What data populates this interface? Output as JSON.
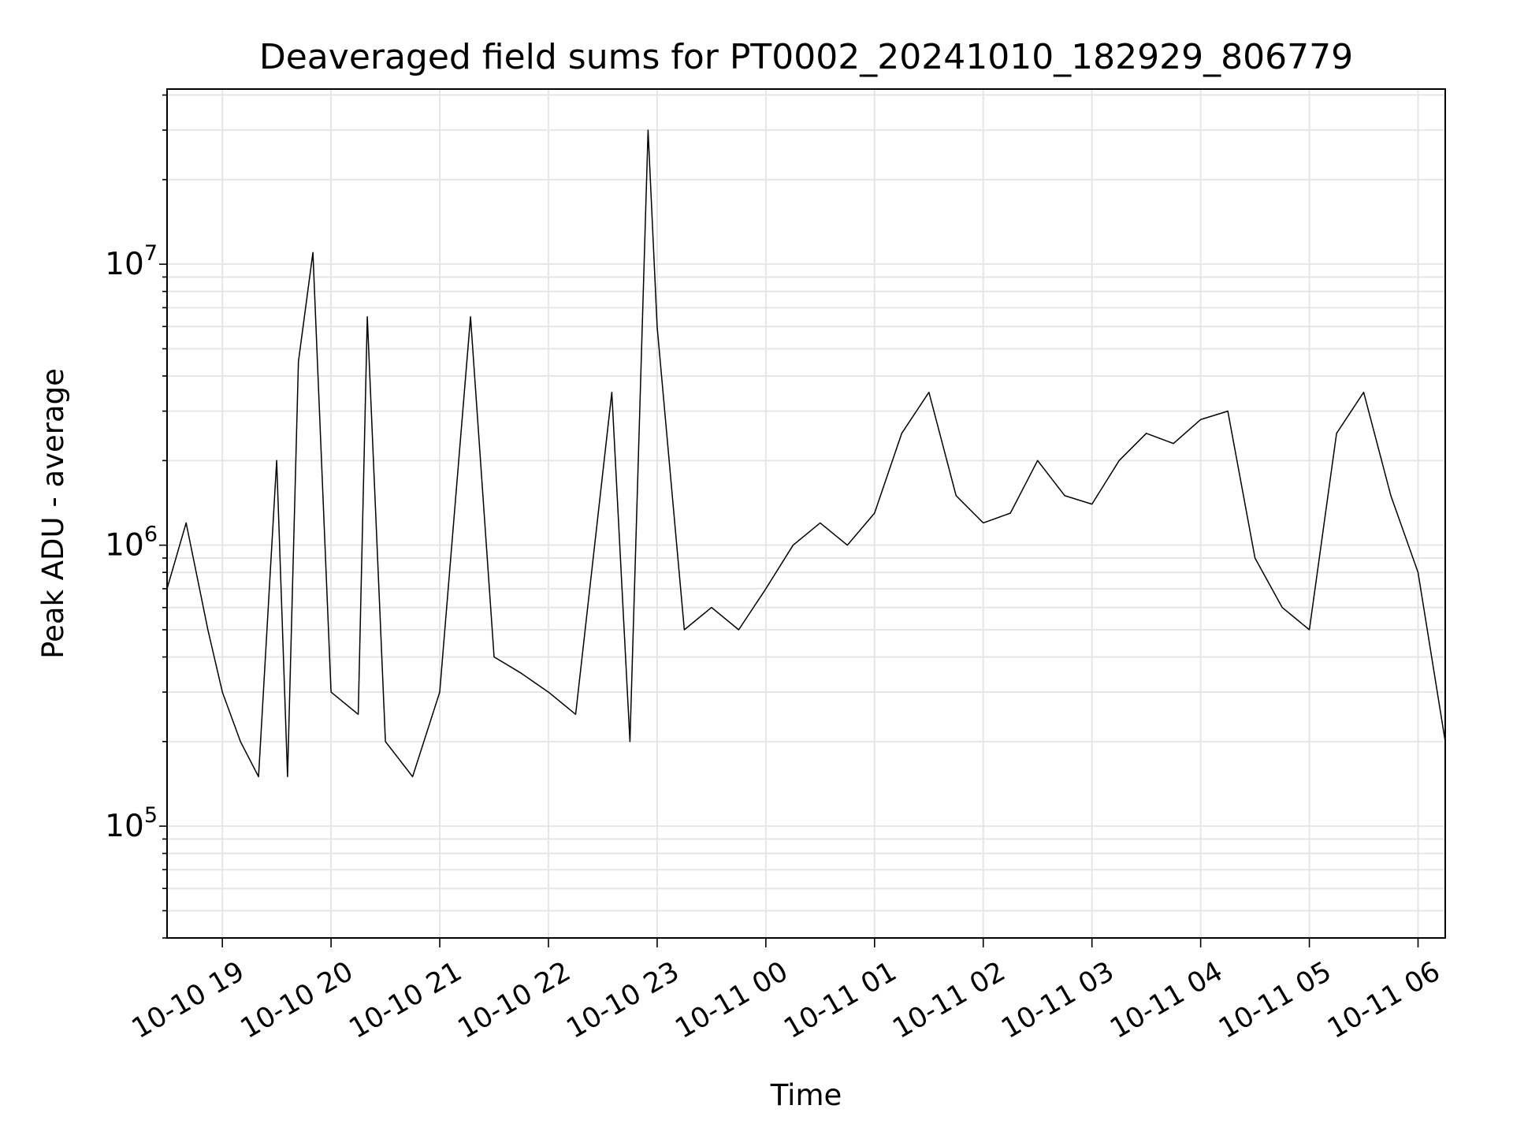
{
  "chart_data": {
    "type": "line",
    "title": "Deaveraged field sums for PT0002_20241010_182929_806779",
    "xlabel": "Time",
    "ylabel": "Peak ADU - average",
    "yscale": "log",
    "ylim": [
      40000,
      42000000
    ],
    "xlim": [
      "2024-10-10 18:29:29",
      "2024-10-11 06:15:00"
    ],
    "grid": true,
    "line_color": "#000000",
    "x_ticks": [
      "10-10 19",
      "10-10 20",
      "10-10 21",
      "10-10 22",
      "10-10 23",
      "10-11 00",
      "10-11 01",
      "10-11 02",
      "10-11 03",
      "10-11 04",
      "10-11 05",
      "10-11 06"
    ],
    "y_ticks": [
      {
        "base": "10",
        "exp": "5",
        "value": 100000
      },
      {
        "base": "10",
        "exp": "6",
        "value": 1000000
      },
      {
        "base": "10",
        "exp": "7",
        "value": 10000000
      }
    ],
    "series": [
      {
        "x": [
          "2024-10-10 18:29:29",
          "2024-10-10 18:40",
          "2024-10-10 18:52",
          "2024-10-10 19:00",
          "2024-10-10 19:10",
          "2024-10-10 19:20",
          "2024-10-10 19:30",
          "2024-10-10 19:36",
          "2024-10-10 19:42",
          "2024-10-10 19:50",
          "2024-10-10 20:00",
          "2024-10-10 20:15",
          "2024-10-10 20:20",
          "2024-10-10 20:30",
          "2024-10-10 20:45",
          "2024-10-10 21:00",
          "2024-10-10 21:17",
          "2024-10-10 21:30",
          "2024-10-10 21:45",
          "2024-10-10 22:00",
          "2024-10-10 22:15",
          "2024-10-10 22:35",
          "2024-10-10 22:45",
          "2024-10-10 22:55",
          "2024-10-10 23:00",
          "2024-10-10 23:15",
          "2024-10-10 23:30",
          "2024-10-10 23:45",
          "2024-10-11 00:00",
          "2024-10-11 00:15",
          "2024-10-11 00:30",
          "2024-10-11 00:45",
          "2024-10-11 01:00",
          "2024-10-11 01:15",
          "2024-10-11 01:30",
          "2024-10-11 01:45",
          "2024-10-11 02:00",
          "2024-10-11 02:15",
          "2024-10-11 02:30",
          "2024-10-11 02:45",
          "2024-10-11 03:00",
          "2024-10-11 03:15",
          "2024-10-11 03:30",
          "2024-10-11 03:45",
          "2024-10-11 04:00",
          "2024-10-11 04:15",
          "2024-10-11 04:30",
          "2024-10-11 04:45",
          "2024-10-11 05:00",
          "2024-10-11 05:15",
          "2024-10-11 05:30",
          "2024-10-11 05:45",
          "2024-10-11 06:00",
          "2024-10-11 06:15"
        ],
        "y": [
          700000,
          1200000,
          500000,
          300000,
          200000,
          150000,
          2000000,
          150000,
          4500000,
          11000000,
          300000,
          250000,
          6500000,
          200000,
          150000,
          300000,
          6500000,
          400000,
          350000,
          300000,
          250000,
          3500000,
          200000,
          30000000,
          6000000,
          500000,
          600000,
          500000,
          700000,
          1000000,
          1200000,
          1000000,
          1300000,
          2500000,
          3500000,
          1500000,
          1200000,
          1300000,
          2000000,
          1500000,
          1400000,
          2000000,
          2500000,
          2300000,
          2800000,
          3000000,
          900000,
          600000,
          500000,
          2500000,
          3500000,
          1500000,
          800000,
          200000
        ]
      }
    ]
  }
}
